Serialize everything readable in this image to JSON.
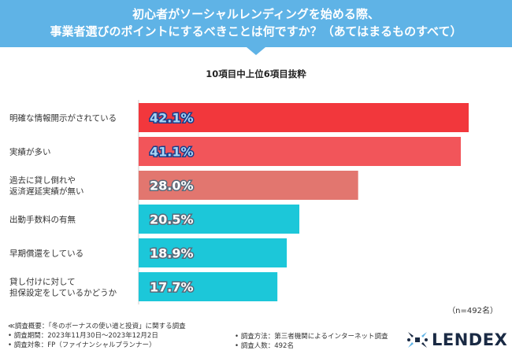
{
  "header": {
    "line1": "初心者がソーシャルレンディングを始める際、",
    "line2": "事業者選びのポイントにするべきことは何ですか？（あてはまるものすべて）"
  },
  "subtitle": "10項目中上位6項目抜粋",
  "chart_data": {
    "type": "bar",
    "orientation": "horizontal",
    "categories": [
      [
        "明確な情報開示がされている"
      ],
      [
        "実績が多い"
      ],
      [
        "過去に貸し倒れや",
        "返済遅延実績が無い"
      ],
      [
        "出動手数料の有無"
      ],
      [
        "早期償還をしている"
      ],
      [
        "貸し付けに対して",
        "担保設定をしているかどうか"
      ]
    ],
    "values": [
      42.1,
      41.1,
      28.0,
      20.5,
      18.9,
      17.7
    ],
    "value_labels": [
      "42.1%",
      "41.1%",
      "28.0%",
      "20.5%",
      "18.9%",
      "17.7%"
    ],
    "colors": [
      "#f2373c",
      "#f2555a",
      "#e2766f",
      "#1cc7d9",
      "#1cc7d9",
      "#1cc7d9"
    ],
    "label_colors": [
      "#a7d4f4",
      "#a7d4f4",
      "#ffffff",
      "#ffffff",
      "#ffffff",
      "#ffffff"
    ],
    "xlim": [
      0,
      45
    ],
    "title": "10項目中上位6項目抜粋"
  },
  "sample_size": "（n=492名）",
  "footer": {
    "survey_summary": "≪調査概要：「冬のボーナスの使い道と投資」に関する調査",
    "survey_period": "• 調査期間：2023年11月30日～2023年12月2日",
    "survey_target": "• 調査対象：FP（ファイナンシャルプランナー）",
    "survey_method": "• 調査方法：第三者機関によるインターネット調査",
    "survey_count": "• 調査人数：492名"
  },
  "logo": {
    "text": "LENDEX",
    "color": "#1a2a44"
  }
}
